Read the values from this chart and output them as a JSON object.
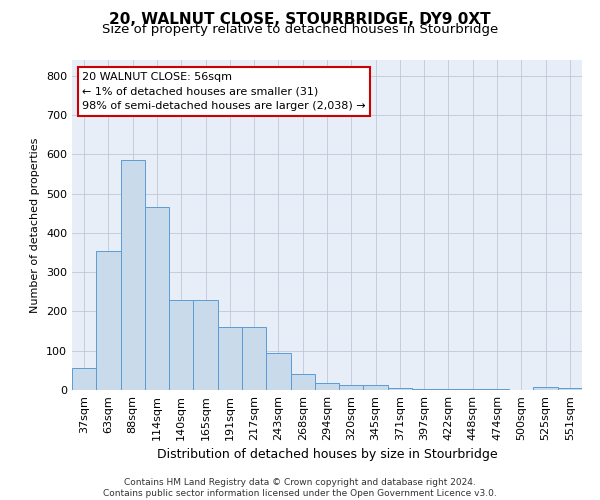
{
  "title": "20, WALNUT CLOSE, STOURBRIDGE, DY9 0XT",
  "subtitle": "Size of property relative to detached houses in Stourbridge",
  "xlabel": "Distribution of detached houses by size in Stourbridge",
  "ylabel": "Number of detached properties",
  "categories": [
    "37sqm",
    "63sqm",
    "88sqm",
    "114sqm",
    "140sqm",
    "165sqm",
    "191sqm",
    "217sqm",
    "243sqm",
    "268sqm",
    "294sqm",
    "320sqm",
    "345sqm",
    "371sqm",
    "397sqm",
    "422sqm",
    "448sqm",
    "474sqm",
    "500sqm",
    "525sqm",
    "551sqm"
  ],
  "values": [
    55,
    355,
    585,
    465,
    230,
    228,
    160,
    160,
    95,
    42,
    18,
    14,
    12,
    5,
    3,
    3,
    2,
    2,
    0,
    8,
    5
  ],
  "bar_color": "#c9daea",
  "bar_edge_color": "#5b9bd5",
  "annotation_line1": "20 WALNUT CLOSE: 56sqm",
  "annotation_line2": "← 1% of detached houses are smaller (31)",
  "annotation_line3": "98% of semi-detached houses are larger (2,038) →",
  "annotation_box_color": "#ffffff",
  "annotation_box_edge_color": "#cc0000",
  "footer_line1": "Contains HM Land Registry data © Crown copyright and database right 2024.",
  "footer_line2": "Contains public sector information licensed under the Open Government Licence v3.0.",
  "ylim": [
    0,
    840
  ],
  "yticks": [
    0,
    100,
    200,
    300,
    400,
    500,
    600,
    700,
    800
  ],
  "background_color": "#ffffff",
  "plot_bg_color": "#e8eef7",
  "grid_color": "#c0c8d8",
  "title_fontsize": 11,
  "subtitle_fontsize": 9.5,
  "xlabel_fontsize": 9,
  "ylabel_fontsize": 8,
  "tick_fontsize": 8,
  "annotation_fontsize": 8,
  "footer_fontsize": 6.5
}
